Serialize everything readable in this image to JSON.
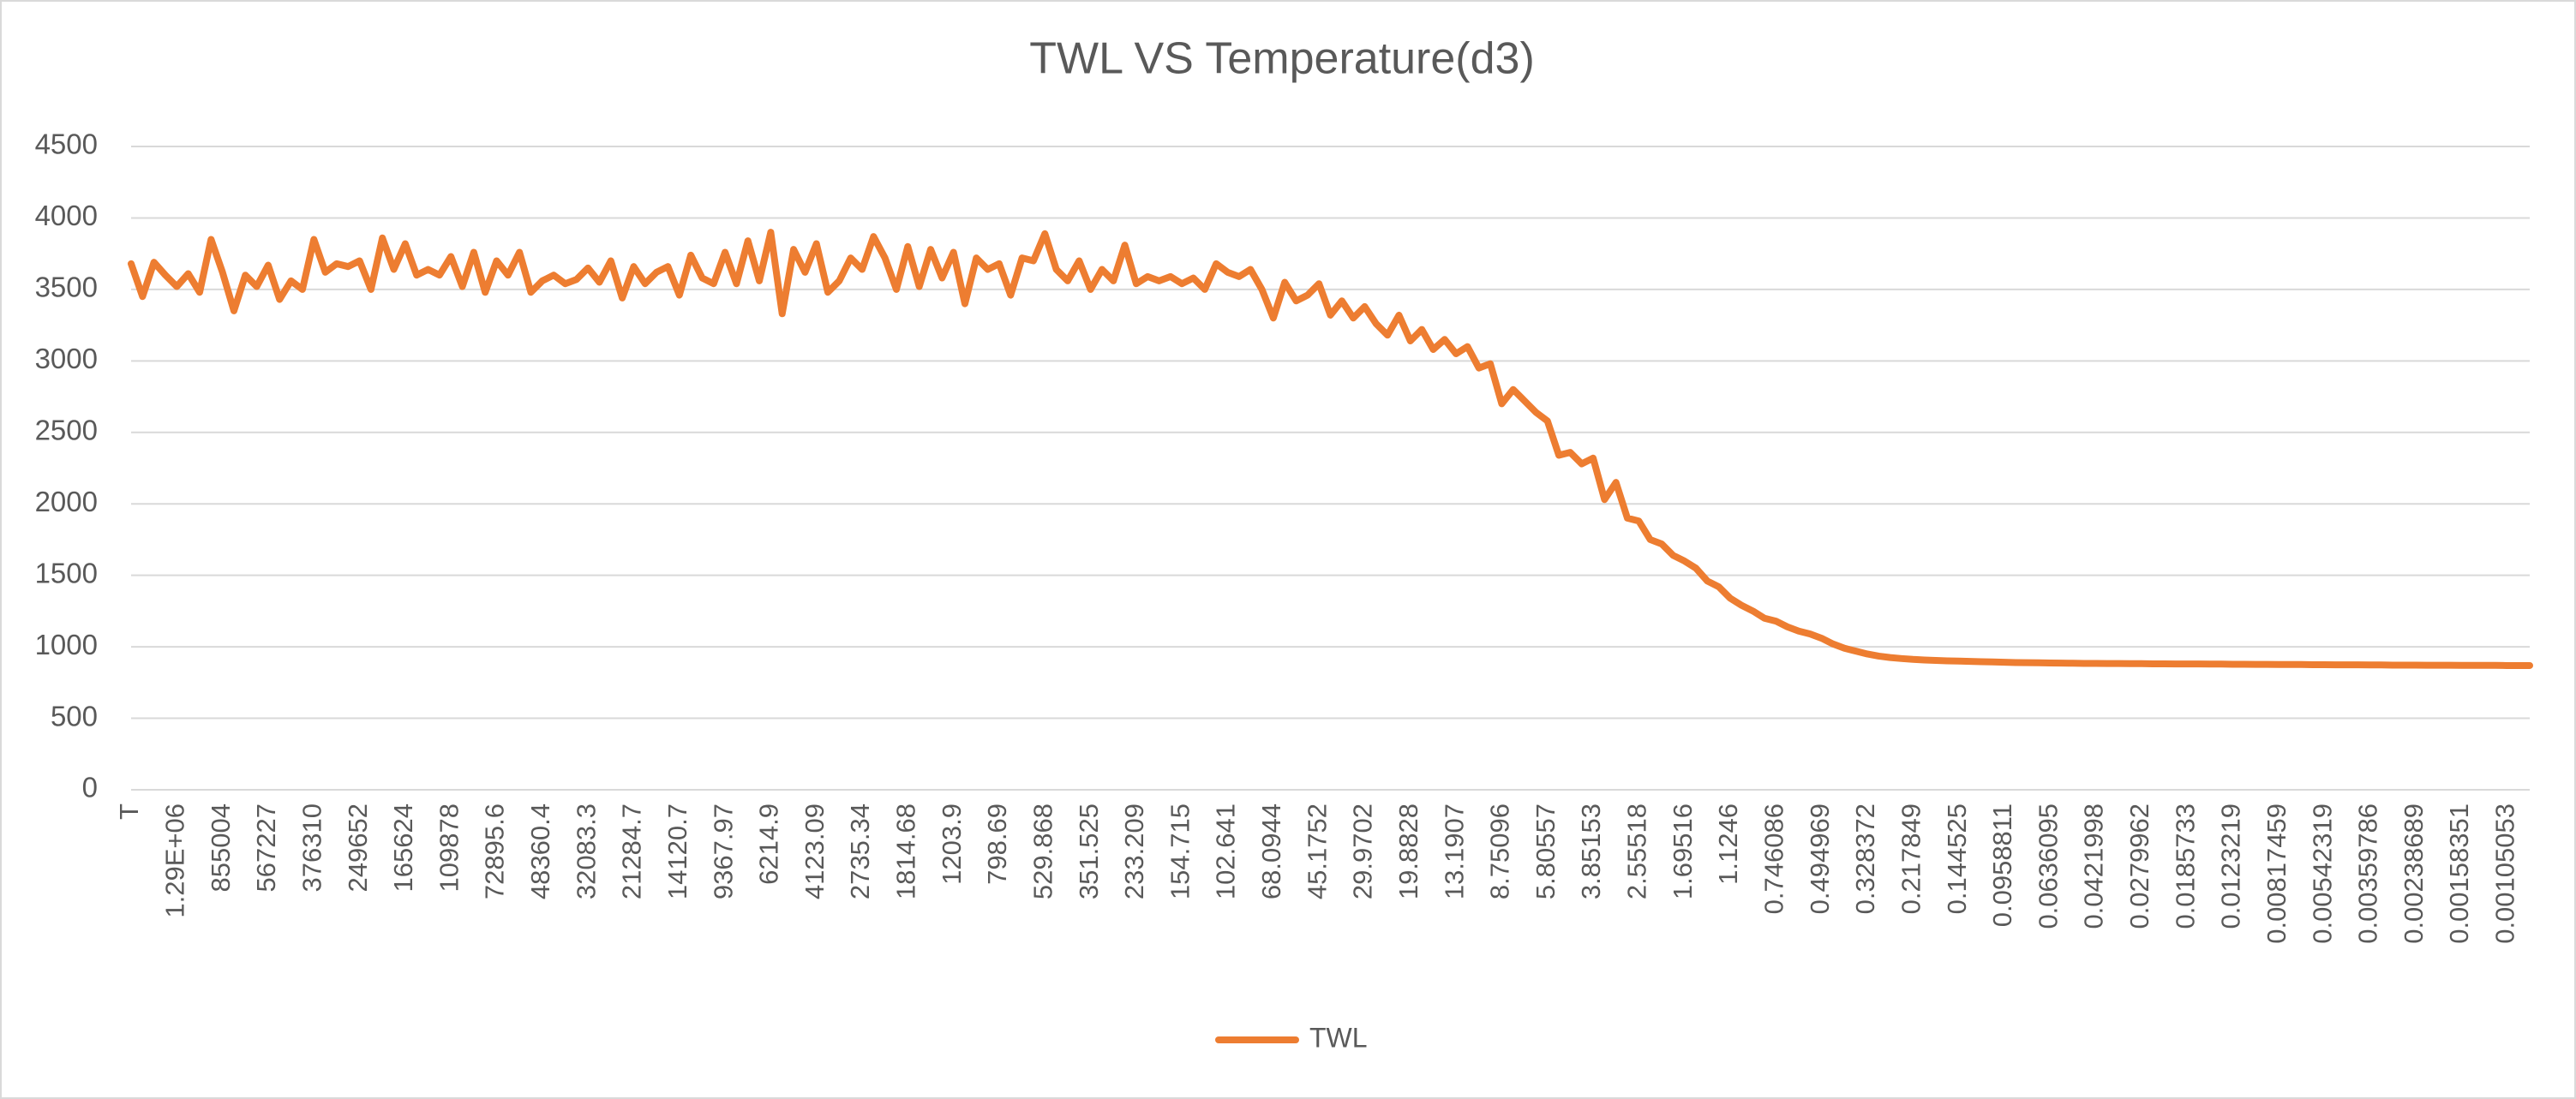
{
  "chart_data": {
    "type": "line",
    "title": "TWL VS Temperature(d3)",
    "categories": [
      "T",
      null,
      null,
      null,
      "1.29E+06",
      null,
      null,
      null,
      "855004",
      null,
      null,
      null,
      "567227",
      null,
      null,
      null,
      "376310",
      null,
      null,
      null,
      "249652",
      null,
      null,
      null,
      "165624",
      null,
      null,
      null,
      "109878",
      null,
      null,
      null,
      "72895.6",
      null,
      null,
      null,
      "48360.4",
      null,
      null,
      null,
      "32083.3",
      null,
      null,
      null,
      "21284.7",
      null,
      null,
      null,
      "14120.7",
      null,
      null,
      null,
      "9367.97",
      null,
      null,
      null,
      "6214.9",
      null,
      null,
      null,
      "4123.09",
      null,
      null,
      null,
      "2735.34",
      null,
      null,
      null,
      "1814.68",
      null,
      null,
      null,
      "1203.9",
      null,
      null,
      null,
      "798.69",
      null,
      null,
      null,
      "529.868",
      null,
      null,
      null,
      "351.525",
      null,
      null,
      null,
      "233.209",
      null,
      null,
      null,
      "154.715",
      null,
      null,
      null,
      "102.641",
      null,
      null,
      null,
      "68.0944",
      null,
      null,
      null,
      "45.1752",
      null,
      null,
      null,
      "29.9702",
      null,
      null,
      null,
      "19.8828",
      null,
      null,
      null,
      "13.1907",
      null,
      null,
      null,
      "8.75096",
      null,
      null,
      null,
      "5.80557",
      null,
      null,
      null,
      "3.85153",
      null,
      null,
      null,
      "2.55518",
      null,
      null,
      null,
      "1.69516",
      null,
      null,
      null,
      "1.1246",
      null,
      null,
      null,
      "0.746086",
      null,
      null,
      null,
      "0.494969",
      null,
      null,
      null,
      "0.328372",
      null,
      null,
      null,
      "0.217849",
      null,
      null,
      null,
      "0.144525",
      null,
      null,
      null,
      "0.0958811",
      null,
      null,
      null,
      "0.0636095",
      null,
      null,
      null,
      "0.0421998",
      null,
      null,
      null,
      "0.0279962",
      null,
      null,
      null,
      "0.0185733",
      null,
      null,
      null,
      "0.0123219",
      null,
      null,
      null,
      "0.00817459",
      null,
      null,
      null,
      "0.00542319",
      null,
      null,
      null,
      "0.00359786",
      null,
      null,
      null,
      "0.00238689",
      null,
      null,
      null,
      "0.00158351",
      null,
      null,
      null,
      "0.00105053",
      null,
      null
    ],
    "series": [
      {
        "name": "TWL",
        "color": "#ed7d31",
        "values": [
          3680,
          3450,
          3690,
          3600,
          3520,
          3610,
          3480,
          3850,
          3620,
          3350,
          3600,
          3520,
          3670,
          3430,
          3560,
          3500,
          3850,
          3620,
          3680,
          3660,
          3700,
          3500,
          3860,
          3640,
          3820,
          3600,
          3640,
          3600,
          3730,
          3520,
          3760,
          3480,
          3700,
          3600,
          3760,
          3480,
          3560,
          3600,
          3540,
          3570,
          3650,
          3550,
          3700,
          3440,
          3660,
          3540,
          3620,
          3660,
          3460,
          3740,
          3580,
          3540,
          3760,
          3540,
          3840,
          3560,
          3900,
          3330,
          3780,
          3620,
          3820,
          3480,
          3560,
          3720,
          3640,
          3870,
          3720,
          3500,
          3800,
          3520,
          3780,
          3580,
          3760,
          3400,
          3720,
          3640,
          3680,
          3460,
          3720,
          3700,
          3890,
          3640,
          3560,
          3700,
          3500,
          3640,
          3560,
          3810,
          3540,
          3590,
          3560,
          3590,
          3540,
          3580,
          3500,
          3680,
          3620,
          3590,
          3640,
          3500,
          3300,
          3550,
          3420,
          3460,
          3540,
          3320,
          3420,
          3300,
          3380,
          3260,
          3180,
          3320,
          3140,
          3220,
          3080,
          3150,
          3050,
          3100,
          2950,
          2980,
          2700,
          2800,
          2720,
          2640,
          2580,
          2340,
          2360,
          2280,
          2320,
          2030,
          2150,
          1900,
          1880,
          1750,
          1720,
          1640,
          1600,
          1550,
          1460,
          1420,
          1340,
          1290,
          1250,
          1200,
          1180,
          1140,
          1110,
          1090,
          1060,
          1020,
          990,
          970,
          950,
          935,
          925,
          918,
          912,
          908,
          905,
          902,
          900,
          898,
          896,
          894,
          892,
          890,
          889,
          888,
          887,
          886,
          885,
          884,
          884,
          883,
          883,
          882,
          882,
          881,
          881,
          880,
          880,
          880,
          879,
          879,
          878,
          878,
          877,
          877,
          876,
          876,
          876,
          875,
          875,
          874,
          874,
          874,
          873,
          873,
          872,
          872,
          872,
          871,
          871,
          871,
          870,
          870,
          870,
          870,
          869,
          869,
          869
        ]
      }
    ],
    "ylim": [
      0,
      4500
    ],
    "yticks": [
      0,
      500,
      1000,
      1500,
      2000,
      2500,
      3000,
      3500,
      4000,
      4500
    ],
    "grid": true,
    "legend": "bottom"
  }
}
